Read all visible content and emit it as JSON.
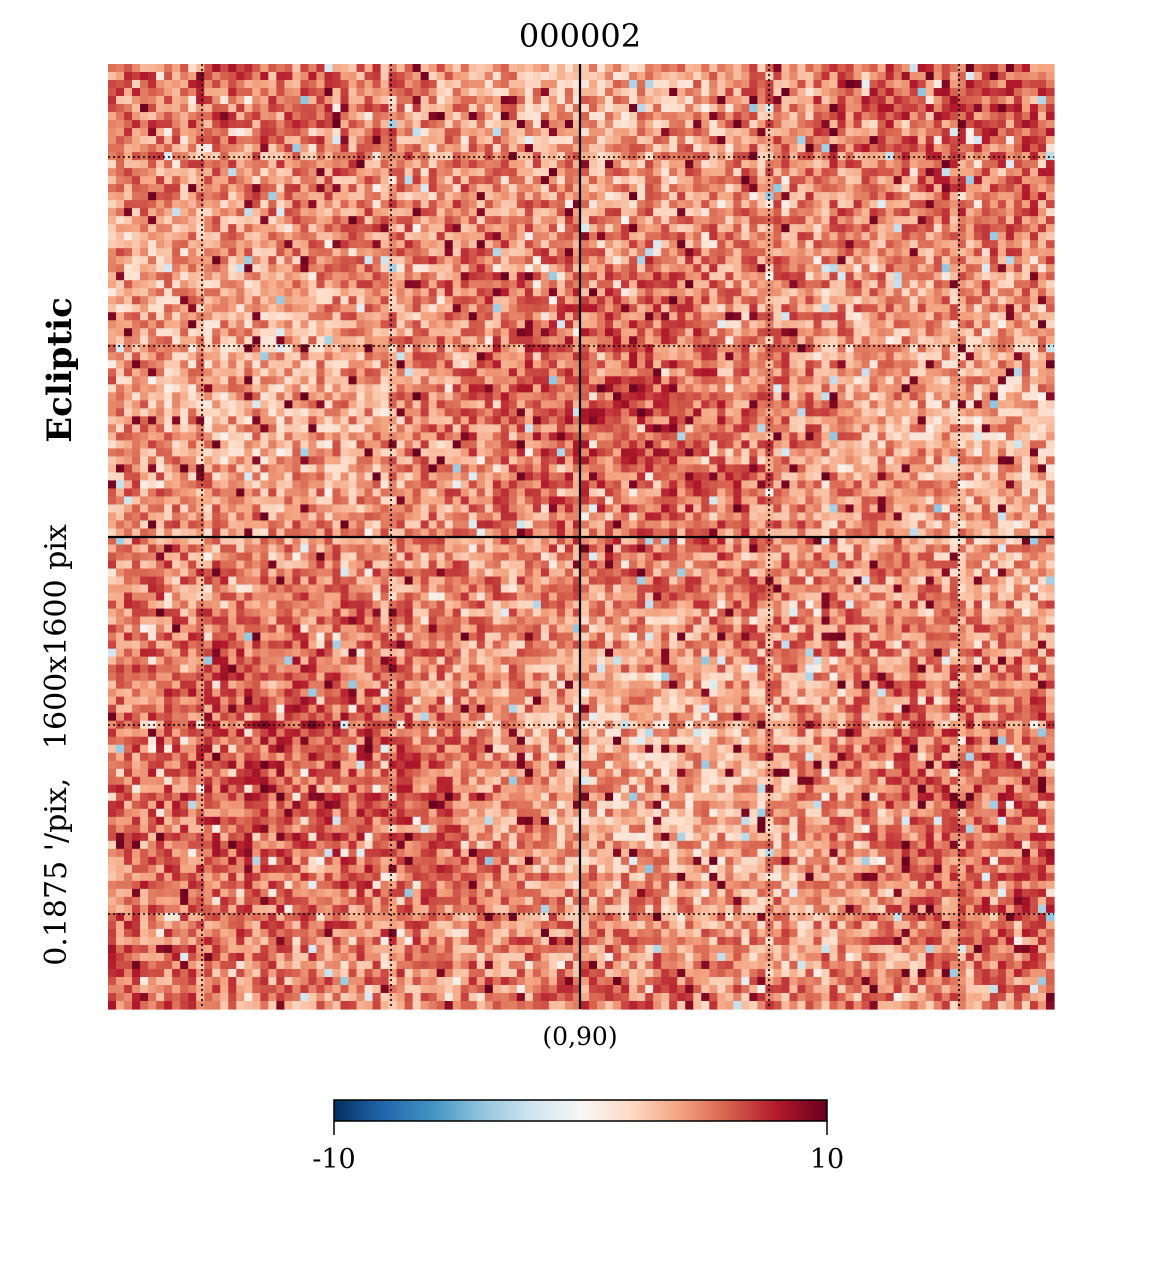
{
  "chart_data": {
    "type": "heatmap",
    "title": "000002",
    "projection_center": "(0,90)",
    "coordinate_system": "Ecliptic",
    "resolution_text": "0.1875 '/pix,   1600x1600 pix",
    "grid": true,
    "colormap": "RdBu_r",
    "colorbar": {
      "placement": "bottom",
      "min": -10,
      "max": 10,
      "min_label": "-10",
      "max_label": "10"
    },
    "colors": {
      "neg_end": "#053061",
      "neutral": "#f7f7f7",
      "pos_end": "#67001f",
      "typical": "#e8866c"
    }
  }
}
